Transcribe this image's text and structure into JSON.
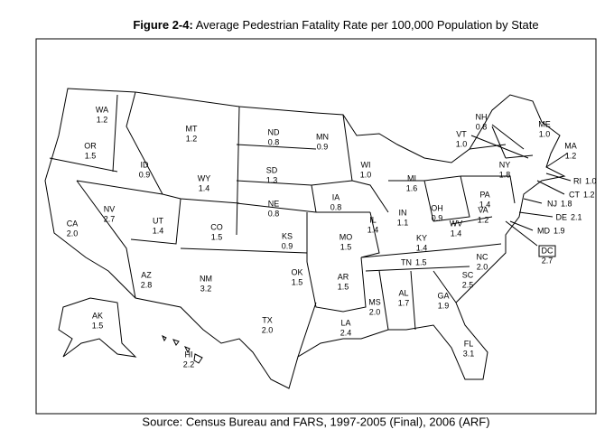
{
  "title": {
    "label": "Figure 2-4:",
    "text": " Average Pedestrian Fatality Rate per 100,000 Population by State"
  },
  "states": [
    {
      "abbr": "WA",
      "value": "1.2"
    },
    {
      "abbr": "OR",
      "value": "1.5"
    },
    {
      "abbr": "MT",
      "value": "1.2"
    },
    {
      "abbr": "ID",
      "value": "0.9"
    },
    {
      "abbr": "WY",
      "value": "1.4"
    },
    {
      "abbr": "ND",
      "value": "0.8"
    },
    {
      "abbr": "MN",
      "value": "0.9"
    },
    {
      "abbr": "SD",
      "value": "1.3"
    },
    {
      "abbr": "NE",
      "value": "0.8"
    },
    {
      "abbr": "WI",
      "value": "1.0"
    },
    {
      "abbr": "MI",
      "value": "1.6"
    },
    {
      "abbr": "IA",
      "value": "0.8"
    },
    {
      "abbr": "IL",
      "value": "1.4"
    },
    {
      "abbr": "IN",
      "value": "1.1"
    },
    {
      "abbr": "OH",
      "value": "0.9"
    },
    {
      "abbr": "PA",
      "value": "1.4"
    },
    {
      "abbr": "NY",
      "value": "1.8"
    },
    {
      "abbr": "VT",
      "value": "1.0"
    },
    {
      "abbr": "NH",
      "value": "0.8"
    },
    {
      "abbr": "ME",
      "value": "1.0"
    },
    {
      "abbr": "MA",
      "value": "1.2"
    },
    {
      "abbr": "RI",
      "value": "1.0"
    },
    {
      "abbr": "CT",
      "value": "1.2"
    },
    {
      "abbr": "NJ",
      "value": "1.8"
    },
    {
      "abbr": "DE",
      "value": "2.1"
    },
    {
      "abbr": "MD",
      "value": "1.9"
    },
    {
      "abbr": "DC",
      "value": "2.7"
    },
    {
      "abbr": "NV",
      "value": "2.7"
    },
    {
      "abbr": "CA",
      "value": "2.0"
    },
    {
      "abbr": "UT",
      "value": "1.4"
    },
    {
      "abbr": "CO",
      "value": "1.5"
    },
    {
      "abbr": "KS",
      "value": "0.9"
    },
    {
      "abbr": "MO",
      "value": "1.5"
    },
    {
      "abbr": "KY",
      "value": "1.4"
    },
    {
      "abbr": "WV",
      "value": "1.4"
    },
    {
      "abbr": "VA",
      "value": "1.2"
    },
    {
      "abbr": "NC",
      "value": "2.0"
    },
    {
      "abbr": "TN",
      "value": "1.5"
    },
    {
      "abbr": "AZ",
      "value": "2.8"
    },
    {
      "abbr": "NM",
      "value": "3.2"
    },
    {
      "abbr": "OK",
      "value": "1.5"
    },
    {
      "abbr": "AR",
      "value": "1.5"
    },
    {
      "abbr": "SC",
      "value": "2.5"
    },
    {
      "abbr": "MS",
      "value": "2.0"
    },
    {
      "abbr": "AL",
      "value": "1.7"
    },
    {
      "abbr": "GA",
      "value": "1.9"
    },
    {
      "abbr": "TX",
      "value": "2.0"
    },
    {
      "abbr": "LA",
      "value": "2.4"
    },
    {
      "abbr": "FL",
      "value": "3.1"
    },
    {
      "abbr": "AK",
      "value": "1.5"
    },
    {
      "abbr": "HI",
      "value": "2.2"
    }
  ],
  "source": "Source: Census Bureau and FARS, 1997-2005 (Final), 2006 (ARF)"
}
